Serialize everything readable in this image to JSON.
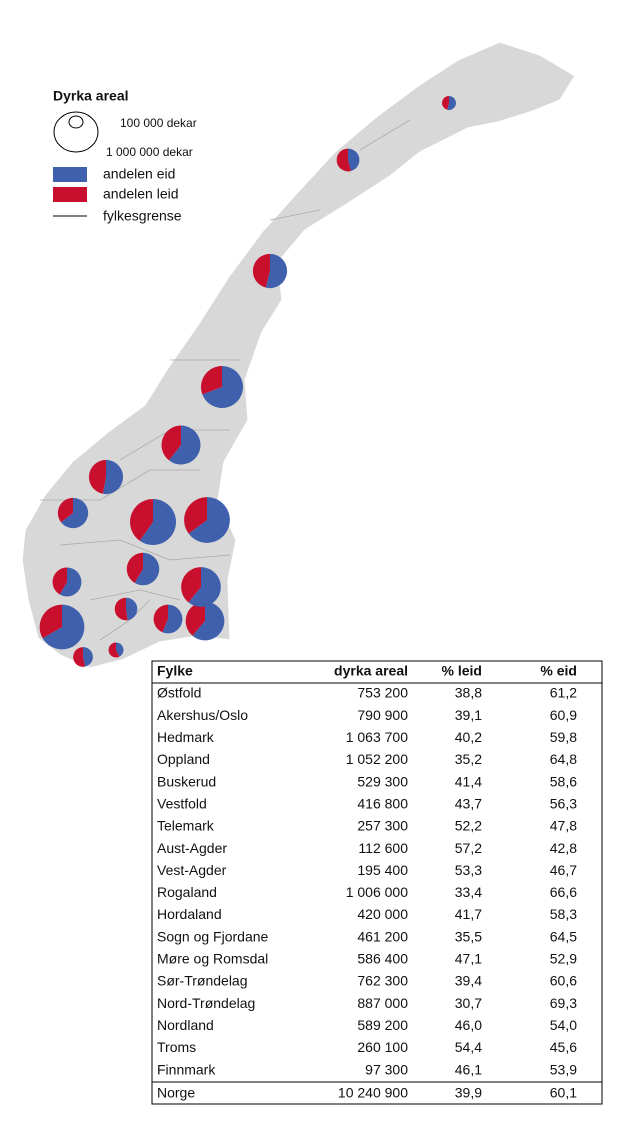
{
  "legend": {
    "title": "Dyrka areal",
    "sizes": [
      {
        "value": 100000,
        "label": "100 000 dekar"
      },
      {
        "value": 1000000,
        "label": "1 000 000 dekar"
      }
    ],
    "owned": {
      "label": "andelen eid",
      "color": "#3f60ad"
    },
    "rented": {
      "label": "andelen leid",
      "color": "#c8102e"
    },
    "border": "fylkesgrense"
  },
  "table": {
    "header": [
      "Fylke",
      "dyrka areal",
      "% leid",
      "% eid"
    ],
    "rows": [
      {
        "name": "Østfold",
        "area": 753200,
        "area_label": "753 200",
        "leid": 38.8,
        "leid_label": "38,8",
        "eid": 61.2,
        "eid_label": "61,2"
      },
      {
        "name": "Akershus/Oslo",
        "area": 790900,
        "area_label": "790 900",
        "leid": 39.1,
        "leid_label": "39,1",
        "eid": 60.9,
        "eid_label": "60,9"
      },
      {
        "name": "Hedmark",
        "area": 1063700,
        "area_label": "1 063 700",
        "leid": 40.2,
        "leid_label": "40,2",
        "eid": 59.8,
        "eid_label": "59,8"
      },
      {
        "name": "Oppland",
        "area": 1052200,
        "area_label": "1 052 200",
        "leid": 35.2,
        "leid_label": "35,2",
        "eid": 64.8,
        "eid_label": "64,8"
      },
      {
        "name": "Buskerud",
        "area": 529300,
        "area_label": "529 300",
        "leid": 41.4,
        "leid_label": "41,4",
        "eid": 58.6,
        "eid_label": "58,6"
      },
      {
        "name": "Vestfold",
        "area": 416800,
        "area_label": "416 800",
        "leid": 43.7,
        "leid_label": "43,7",
        "eid": 56.3,
        "eid_label": "56,3"
      },
      {
        "name": "Telemark",
        "area": 257300,
        "area_label": "257 300",
        "leid": 52.2,
        "leid_label": "52,2",
        "eid": 47.8,
        "eid_label": "47,8"
      },
      {
        "name": "Aust-Agder",
        "area": 112600,
        "area_label": "112 600",
        "leid": 57.2,
        "leid_label": "57,2",
        "eid": 42.8,
        "eid_label": "42,8"
      },
      {
        "name": "Vest-Agder",
        "area": 195400,
        "area_label": "195 400",
        "leid": 53.3,
        "leid_label": "53,3",
        "eid": 46.7,
        "eid_label": "46,7"
      },
      {
        "name": "Rogaland",
        "area": 1006000,
        "area_label": "1 006 000",
        "leid": 33.4,
        "leid_label": "33,4",
        "eid": 66.6,
        "eid_label": "66,6"
      },
      {
        "name": "Hordaland",
        "area": 420000,
        "area_label": "420 000",
        "leid": 41.7,
        "leid_label": "41,7",
        "eid": 58.3,
        "eid_label": "58,3"
      },
      {
        "name": "Sogn og Fjordane",
        "area": 461200,
        "area_label": "461 200",
        "leid": 35.5,
        "leid_label": "35,5",
        "eid": 64.5,
        "eid_label": "64,5"
      },
      {
        "name": "Møre og Romsdal",
        "area": 586400,
        "area_label": "586 400",
        "leid": 47.1,
        "leid_label": "47,1",
        "eid": 52.9,
        "eid_label": "52,9"
      },
      {
        "name": "Sør-Trøndelag",
        "area": 762300,
        "area_label": "762 300",
        "leid": 39.4,
        "leid_label": "39,4",
        "eid": 60.6,
        "eid_label": "60,6"
      },
      {
        "name": "Nord-Trøndelag",
        "area": 887000,
        "area_label": "887 000",
        "leid": 30.7,
        "leid_label": "30,7",
        "eid": 69.3,
        "eid_label": "69,3"
      },
      {
        "name": "Nordland",
        "area": 589200,
        "area_label": "589 200",
        "leid": 46.0,
        "leid_label": "46,0",
        "eid": 54.0,
        "eid_label": "54,0"
      },
      {
        "name": "Troms",
        "area": 260100,
        "area_label": "260 100",
        "leid": 54.4,
        "leid_label": "54,4",
        "eid": 45.6,
        "eid_label": "45,6"
      },
      {
        "name": "Finnmark",
        "area": 97300,
        "area_label": "97 300",
        "leid": 46.1,
        "leid_label": "46,1",
        "eid": 53.9,
        "eid_label": "53,9"
      }
    ],
    "total": {
      "name": "Norge",
      "area": 10240900,
      "area_label": "10 240 900",
      "leid": 39.9,
      "leid_label": "39,9",
      "eid": 60.1,
      "eid_label": "60,1"
    }
  }
}
